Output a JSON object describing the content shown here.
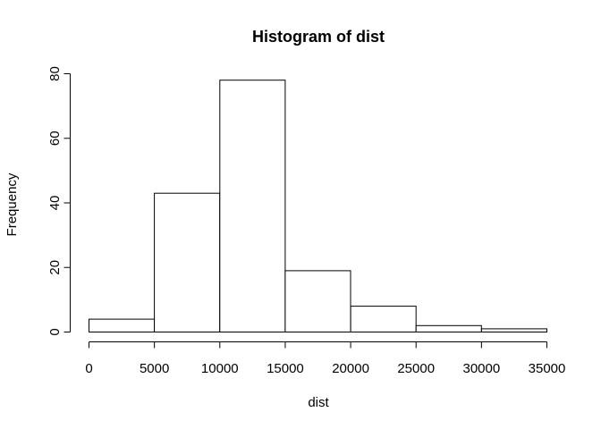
{
  "chart_data": {
    "type": "bar",
    "title": "Histogram of dist",
    "xlabel": "dist",
    "ylabel": "Frequency",
    "bins": [
      {
        "from": 0,
        "to": 5000,
        "count": 4
      },
      {
        "from": 5000,
        "to": 10000,
        "count": 43
      },
      {
        "from": 10000,
        "to": 15000,
        "count": 78
      },
      {
        "from": 15000,
        "to": 20000,
        "count": 19
      },
      {
        "from": 20000,
        "to": 25000,
        "count": 8
      },
      {
        "from": 25000,
        "to": 30000,
        "count": 2
      },
      {
        "from": 30000,
        "to": 35000,
        "count": 1
      }
    ],
    "xlim": [
      0,
      35000
    ],
    "ylim": [
      0,
      80
    ],
    "x_ticks": [
      "0",
      "5000",
      "10000",
      "15000",
      "20000",
      "25000",
      "30000",
      "35000"
    ],
    "y_ticks": [
      "0",
      "20",
      "40",
      "60",
      "80"
    ],
    "grid": false,
    "legend": "none",
    "colors": {
      "bar_fill": "#ffffff",
      "bar_stroke": "#000000"
    }
  }
}
